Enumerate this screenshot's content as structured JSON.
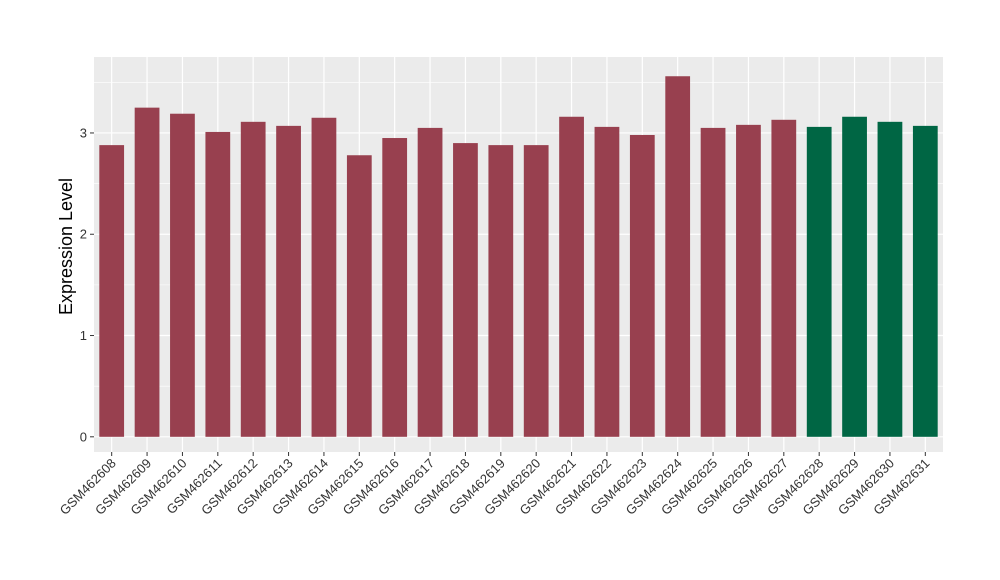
{
  "chart_data": {
    "type": "bar",
    "title": "",
    "xlabel": "",
    "ylabel": "Expression Level",
    "ylim": [
      -0.15,
      3.75
    ],
    "yticks": [
      0,
      1,
      2,
      3
    ],
    "grid": true,
    "legend": "none",
    "colors": {
      "group1": "#98404F",
      "group2": "#006644",
      "panel": "#EBEBEB",
      "grid": "#FFFFFF"
    },
    "categories": [
      "GSM462608",
      "GSM462609",
      "GSM462610",
      "GSM462611",
      "GSM462612",
      "GSM462613",
      "GSM462614",
      "GSM462615",
      "GSM462616",
      "GSM462617",
      "GSM462618",
      "GSM462619",
      "GSM462620",
      "GSM462621",
      "GSM462622",
      "GSM462623",
      "GSM462624",
      "GSM462625",
      "GSM462626",
      "GSM462627",
      "GSM462628",
      "GSM462629",
      "GSM462630",
      "GSM462631"
    ],
    "values": [
      2.88,
      3.25,
      3.19,
      3.01,
      3.11,
      3.07,
      3.15,
      2.78,
      2.95,
      3.05,
      2.9,
      2.88,
      2.88,
      3.16,
      3.06,
      2.98,
      3.56,
      3.05,
      3.08,
      3.13,
      3.06,
      3.16,
      3.11,
      3.07
    ],
    "groups": [
      "group1",
      "group1",
      "group1",
      "group1",
      "group1",
      "group1",
      "group1",
      "group1",
      "group1",
      "group1",
      "group1",
      "group1",
      "group1",
      "group1",
      "group1",
      "group1",
      "group1",
      "group1",
      "group1",
      "group1",
      "group2",
      "group2",
      "group2",
      "group2"
    ]
  }
}
